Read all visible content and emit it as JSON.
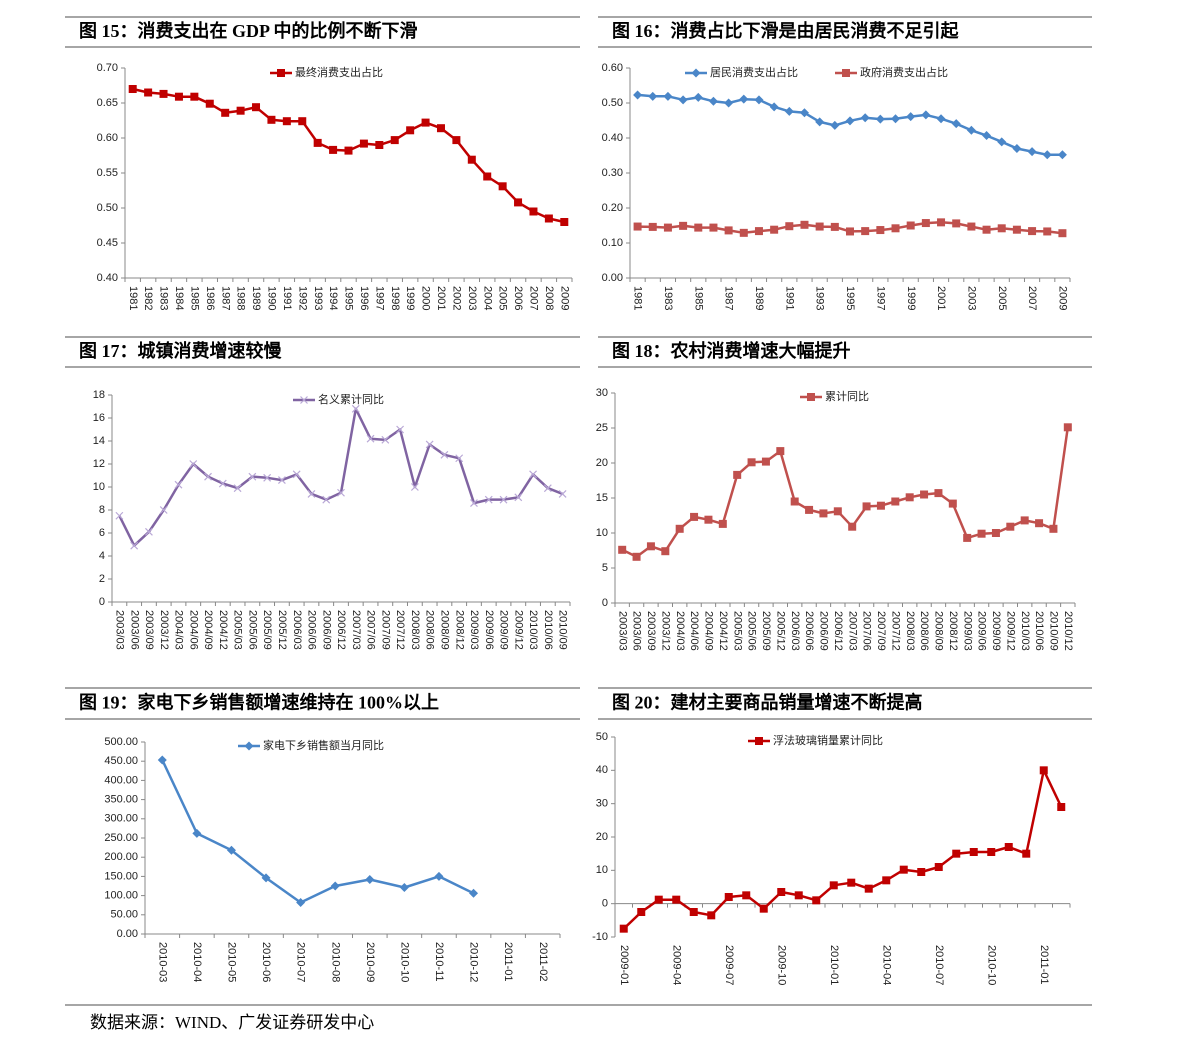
{
  "chart_data": [
    {
      "type": "line",
      "title": "图 15：消费支出在 GDP 中的比例不断下滑",
      "categories": [
        "1981",
        "1982",
        "1983",
        "1984",
        "1985",
        "1986",
        "1987",
        "1988",
        "1989",
        "1990",
        "1991",
        "1992",
        "1993",
        "1994",
        "1995",
        "1996",
        "1997",
        "1998",
        "1999",
        "2000",
        "2001",
        "2002",
        "2003",
        "2004",
        "2005",
        "2006",
        "2007",
        "2008",
        "2009"
      ],
      "series": [
        {
          "name": "最终消费支出占比",
          "color": "#c00000",
          "marker": "square",
          "values": [
            0.67,
            0.665,
            0.663,
            0.659,
            0.659,
            0.649,
            0.636,
            0.639,
            0.644,
            0.626,
            0.624,
            0.624,
            0.593,
            0.583,
            0.582,
            0.592,
            0.59,
            0.597,
            0.611,
            0.622,
            0.614,
            0.597,
            0.569,
            0.545,
            0.531,
            0.508,
            0.495,
            0.485,
            0.48
          ]
        }
      ],
      "ylim": [
        0.4,
        0.7
      ],
      "yticks": [
        {
          "value": 0.4,
          "label": "0.40"
        },
        {
          "value": 0.45,
          "label": "0.45"
        },
        {
          "value": 0.5,
          "label": "0.50"
        },
        {
          "value": 0.55,
          "label": "0.55"
        },
        {
          "value": 0.6,
          "label": "0.60"
        },
        {
          "value": 0.65,
          "label": "0.65"
        },
        {
          "value": 0.7,
          "label": "0.70"
        }
      ],
      "grid": false
    },
    {
      "type": "line",
      "title": "图 16：消费占比下滑是由居民消费不足引起",
      "categories": [
        "1981",
        null,
        "1983",
        null,
        "1985",
        null,
        "1987",
        null,
        "1989",
        null,
        "1991",
        null,
        "1993",
        null,
        "1995",
        null,
        "1997",
        null,
        "1999",
        null,
        "2001",
        null,
        "2003",
        null,
        "2005",
        null,
        "2007",
        null,
        "2009"
      ],
      "series": [
        {
          "name": "居民消费支出占比",
          "color": "#4a86c8",
          "marker": "diamond",
          "values": [
            0.523,
            0.519,
            0.519,
            0.509,
            0.516,
            0.505,
            0.5,
            0.511,
            0.509,
            0.489,
            0.476,
            0.472,
            0.446,
            0.436,
            0.449,
            0.458,
            0.454,
            0.455,
            0.461,
            0.466,
            0.455,
            0.441,
            0.422,
            0.407,
            0.389,
            0.37,
            0.361,
            0.352,
            0.352
          ]
        },
        {
          "name": "政府消费支出占比",
          "color": "#c0504d",
          "marker": "square",
          "values": [
            0.147,
            0.146,
            0.144,
            0.149,
            0.144,
            0.144,
            0.136,
            0.129,
            0.134,
            0.138,
            0.148,
            0.152,
            0.147,
            0.146,
            0.133,
            0.134,
            0.137,
            0.142,
            0.15,
            0.157,
            0.159,
            0.156,
            0.147,
            0.138,
            0.142,
            0.138,
            0.134,
            0.133,
            0.128
          ]
        }
      ],
      "ylim": [
        0,
        0.6
      ],
      "yticks": [
        {
          "value": 0,
          "label": "0.00"
        },
        {
          "value": 0.1,
          "label": "0.10"
        },
        {
          "value": 0.2,
          "label": "0.20"
        },
        {
          "value": 0.3,
          "label": "0.30"
        },
        {
          "value": 0.4,
          "label": "0.40"
        },
        {
          "value": 0.5,
          "label": "0.50"
        },
        {
          "value": 0.6,
          "label": "0.60"
        }
      ],
      "grid": false
    },
    {
      "type": "line",
      "title": "图 17：城镇消费增速较慢",
      "categories": [
        "2003/03",
        "2003/06",
        "2003/09",
        "2003/12",
        "2004/03",
        "2004/06",
        "2004/09",
        "2004/12",
        "2005/03",
        "2005/06",
        "2005/09",
        "2005/12",
        "2006/03",
        "2006/06",
        "2006/09",
        "2006/12",
        "2007/03",
        "2007/06",
        "2007/09",
        "2007/12",
        "2008/03",
        "2008/06",
        "2008/09",
        "2008/12",
        "2009/03",
        "2009/06",
        "2009/09",
        "2009/12",
        "2010/03",
        "2010/06",
        "2010/09"
      ],
      "series": [
        {
          "name": "名义累计同比",
          "color": "#8064a2",
          "marker": "cross",
          "values": [
            7.5,
            4.9,
            6.1,
            8.0,
            10.2,
            12.0,
            10.9,
            10.3,
            9.9,
            10.9,
            10.8,
            10.6,
            11.1,
            9.4,
            8.9,
            9.5,
            16.8,
            14.2,
            14.1,
            15.0,
            10.0,
            13.7,
            12.8,
            12.5,
            8.6,
            8.9,
            8.9,
            9.1,
            11.1,
            9.9,
            9.4
          ]
        }
      ],
      "ylim": [
        0,
        18
      ],
      "yticks": [
        0,
        2,
        4,
        6,
        8,
        10,
        12,
        14,
        16,
        18
      ],
      "grid": false
    },
    {
      "type": "line",
      "title": "图 18：农村消费增速大幅提升",
      "categories": [
        "2003/03",
        "2003/06",
        "2003/09",
        "2003/12",
        "2004/03",
        "2004/06",
        "2004/09",
        "2004/12",
        "2005/03",
        "2005/06",
        "2005/09",
        "2005/12",
        "2006/03",
        "2006/06",
        "2006/09",
        "2006/12",
        "2007/03",
        "2007/06",
        "2007/09",
        "2007/12",
        "2008/03",
        "2008/06",
        "2008/09",
        "2008/12",
        "2009/03",
        "2009/06",
        "2009/09",
        "2009/12",
        "2010/03",
        "2010/06",
        "2010/09",
        "2010/12"
      ],
      "series": [
        {
          "name": "累计同比",
          "color": "#c0504d",
          "marker": "square",
          "values": [
            7.6,
            6.6,
            8.1,
            7.4,
            10.6,
            12.3,
            11.9,
            11.3,
            18.3,
            20.1,
            20.2,
            21.7,
            14.5,
            13.3,
            12.8,
            13.1,
            10.9,
            13.8,
            13.9,
            14.5,
            15.1,
            15.5,
            15.7,
            14.2,
            9.3,
            9.9,
            10.0,
            10.9,
            11.8,
            11.4,
            10.6,
            25.1
          ]
        }
      ],
      "ylim": [
        0,
        30
      ],
      "yticks": [
        0,
        5,
        10,
        15,
        20,
        25,
        30
      ],
      "grid": false
    },
    {
      "type": "line",
      "title": "图 19：家电下乡销售额增速维持在 100%以上",
      "categories": [
        "2010-03",
        "2010-04",
        "2010-05",
        "2010-06",
        "2010-07",
        "2010-08",
        "2010-09",
        "2010-10",
        "2010-11",
        "2010-12",
        "2011-01",
        "2011-02"
      ],
      "series": [
        {
          "name": "家电下乡销售额当月同比",
          "color": "#4a86c8",
          "marker": "diamond",
          "values": [
            453,
            262,
            218,
            146,
            82,
            125,
            142,
            121,
            150,
            106,
            null,
            null
          ]
        }
      ],
      "ylim": [
        0,
        500
      ],
      "yticks": [
        {
          "value": 0,
          "label": "0.00"
        },
        {
          "value": 50,
          "label": "50.00"
        },
        {
          "value": 100,
          "label": "100.00"
        },
        {
          "value": 150,
          "label": "150.00"
        },
        {
          "value": 200,
          "label": "200.00"
        },
        {
          "value": 250,
          "label": "250.00"
        },
        {
          "value": 300,
          "label": "300.00"
        },
        {
          "value": 350,
          "label": "350.00"
        },
        {
          "value": 400,
          "label": "400.00"
        },
        {
          "value": 450,
          "label": "450.00"
        },
        {
          "value": 500,
          "label": "500.00"
        }
      ],
      "grid": false
    },
    {
      "type": "line",
      "title": "图 20：建材主要商品销量增速不断提高",
      "categories": [
        "2009-01",
        null,
        null,
        "2009-04",
        null,
        null,
        "2009-07",
        null,
        null,
        "2009-10",
        null,
        null,
        "2010-01",
        null,
        null,
        "2010-04",
        null,
        null,
        "2010-07",
        null,
        null,
        "2010-10",
        null,
        null,
        "2011-01",
        null
      ],
      "series": [
        {
          "name": "浮法玻璃销量累计同比",
          "color": "#c00000",
          "marker": "square",
          "values": [
            -7.5,
            -2.5,
            1.2,
            1.2,
            -2.5,
            -3.5,
            2.0,
            2.5,
            -1.5,
            3.5,
            2.5,
            1.0,
            5.5,
            6.3,
            4.5,
            7.0,
            10.2,
            9.5,
            11.0,
            15.0,
            15.5,
            15.5,
            17.0,
            15.0,
            40.0,
            29.0
          ]
        }
      ],
      "ylim": [
        -10,
        50
      ],
      "yticks": [
        -10,
        0,
        10,
        20,
        30,
        40,
        50
      ],
      "grid": false
    }
  ],
  "source": "数据来源：WIND、广发证券研发中心"
}
